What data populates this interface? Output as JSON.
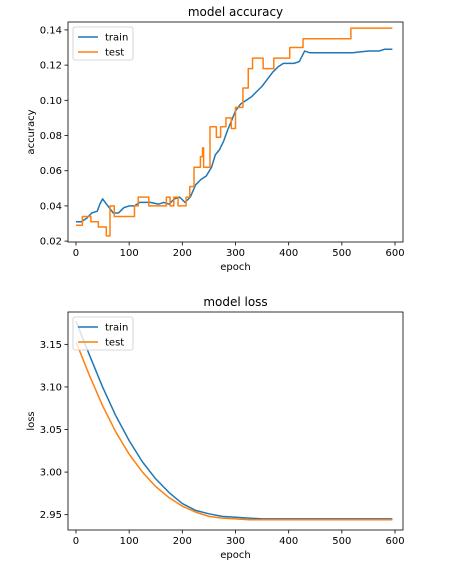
{
  "chart_data": [
    {
      "type": "line",
      "title": "model accuracy",
      "xlabel": "epoch",
      "ylabel": "accuracy",
      "xlim": [
        -15,
        615
      ],
      "ylim": [
        0.0195,
        0.1445
      ],
      "xticks": [
        0,
        100,
        200,
        300,
        400,
        500,
        600
      ],
      "yticks": [
        0.02,
        0.04,
        0.06,
        0.08,
        0.1,
        0.12,
        0.14
      ],
      "ytick_labels": [
        "0.02",
        "0.04",
        "0.06",
        "0.08",
        "0.10",
        "0.12",
        "0.14"
      ],
      "legend": "top-left",
      "series": [
        {
          "name": "train",
          "color": "#1f77b4",
          "points": [
            [
              0,
              0.031
            ],
            [
              10,
              0.031
            ],
            [
              20,
              0.033
            ],
            [
              30,
              0.036
            ],
            [
              40,
              0.037
            ],
            [
              45,
              0.041
            ],
            [
              50,
              0.044
            ],
            [
              55,
              0.042
            ],
            [
              60,
              0.04
            ],
            [
              70,
              0.036
            ],
            [
              80,
              0.036
            ],
            [
              90,
              0.039
            ],
            [
              100,
              0.04
            ],
            [
              110,
              0.04
            ],
            [
              120,
              0.042
            ],
            [
              140,
              0.042
            ],
            [
              155,
              0.041
            ],
            [
              165,
              0.042
            ],
            [
              175,
              0.041
            ],
            [
              185,
              0.044
            ],
            [
              195,
              0.045
            ],
            [
              205,
              0.042
            ],
            [
              215,
              0.045
            ],
            [
              225,
              0.052
            ],
            [
              235,
              0.055
            ],
            [
              245,
              0.057
            ],
            [
              255,
              0.062
            ],
            [
              262,
              0.069
            ],
            [
              270,
              0.072
            ],
            [
              278,
              0.077
            ],
            [
              285,
              0.083
            ],
            [
              292,
              0.088
            ],
            [
              300,
              0.094
            ],
            [
              310,
              0.098
            ],
            [
              320,
              0.1
            ],
            [
              330,
              0.102
            ],
            [
              340,
              0.105
            ],
            [
              350,
              0.108
            ],
            [
              360,
              0.112
            ],
            [
              370,
              0.116
            ],
            [
              380,
              0.119
            ],
            [
              390,
              0.121
            ],
            [
              410,
              0.121
            ],
            [
              420,
              0.122
            ],
            [
              430,
              0.128
            ],
            [
              440,
              0.127
            ],
            [
              460,
              0.127
            ],
            [
              520,
              0.127
            ],
            [
              550,
              0.128
            ],
            [
              570,
              0.128
            ],
            [
              580,
              0.129
            ],
            [
              595,
              0.129
            ]
          ]
        },
        {
          "name": "test",
          "color": "#ff7f0e",
          "step": true,
          "points": [
            [
              0,
              0.029
            ],
            [
              10,
              0.029
            ],
            [
              12,
              0.034
            ],
            [
              25,
              0.034
            ],
            [
              28,
              0.031
            ],
            [
              40,
              0.031
            ],
            [
              42,
              0.028
            ],
            [
              55,
              0.028
            ],
            [
              57,
              0.023
            ],
            [
              62,
              0.023
            ],
            [
              64,
              0.04
            ],
            [
              70,
              0.04
            ],
            [
              72,
              0.034
            ],
            [
              108,
              0.034
            ],
            [
              110,
              0.04
            ],
            [
              115,
              0.04
            ],
            [
              117,
              0.045
            ],
            [
              135,
              0.045
            ],
            [
              137,
              0.04
            ],
            [
              168,
              0.04
            ],
            [
              170,
              0.045
            ],
            [
              175,
              0.045
            ],
            [
              177,
              0.04
            ],
            [
              182,
              0.04
            ],
            [
              184,
              0.045
            ],
            [
              190,
              0.045
            ],
            [
              192,
              0.04
            ],
            [
              205,
              0.04
            ],
            [
              207,
              0.045
            ],
            [
              212,
              0.045
            ],
            [
              214,
              0.051
            ],
            [
              220,
              0.051
            ],
            [
              222,
              0.062
            ],
            [
              232,
              0.062
            ],
            [
              234,
              0.068
            ],
            [
              238,
              0.073
            ],
            [
              240,
              0.062
            ],
            [
              250,
              0.062
            ],
            [
              252,
              0.085
            ],
            [
              262,
              0.085
            ],
            [
              264,
              0.079
            ],
            [
              270,
              0.079
            ],
            [
              272,
              0.085
            ],
            [
              280,
              0.085
            ],
            [
              282,
              0.09
            ],
            [
              290,
              0.09
            ],
            [
              292,
              0.084
            ],
            [
              298,
              0.084
            ],
            [
              300,
              0.096
            ],
            [
              312,
              0.096
            ],
            [
              314,
              0.107
            ],
            [
              322,
              0.107
            ],
            [
              324,
              0.118
            ],
            [
              330,
              0.118
            ],
            [
              332,
              0.124
            ],
            [
              350,
              0.124
            ],
            [
              352,
              0.118
            ],
            [
              370,
              0.118
            ],
            [
              372,
              0.124
            ],
            [
              400,
              0.124
            ],
            [
              402,
              0.13
            ],
            [
              425,
              0.13
            ],
            [
              427,
              0.135
            ],
            [
              515,
              0.135
            ],
            [
              517,
              0.141
            ],
            [
              595,
              0.141
            ]
          ]
        }
      ]
    },
    {
      "type": "line",
      "title": "model loss",
      "xlabel": "epoch",
      "ylabel": "loss",
      "xlim": [
        -15,
        615
      ],
      "ylim": [
        2.932,
        3.188
      ],
      "xticks": [
        0,
        100,
        200,
        300,
        400,
        500,
        600
      ],
      "yticks": [
        2.95,
        3.0,
        3.05,
        3.1,
        3.15
      ],
      "ytick_labels": [
        "2.95",
        "3.00",
        "3.05",
        "3.10",
        "3.15"
      ],
      "legend": "top-left",
      "series": [
        {
          "name": "train",
          "color": "#1f77b4",
          "points": [
            [
              0,
              3.177
            ],
            [
              25,
              3.138
            ],
            [
              50,
              3.1
            ],
            [
              75,
              3.066
            ],
            [
              100,
              3.037
            ],
            [
              125,
              3.012
            ],
            [
              150,
              2.992
            ],
            [
              175,
              2.976
            ],
            [
              200,
              2.963
            ],
            [
              225,
              2.955
            ],
            [
              250,
              2.951
            ],
            [
              275,
              2.948
            ],
            [
              300,
              2.947
            ],
            [
              325,
              2.946
            ],
            [
              350,
              2.945
            ],
            [
              375,
              2.945
            ],
            [
              400,
              2.945
            ],
            [
              450,
              2.945
            ],
            [
              500,
              2.945
            ],
            [
              550,
              2.945
            ],
            [
              595,
              2.945
            ]
          ]
        },
        {
          "name": "test",
          "color": "#ff7f0e",
          "points": [
            [
              0,
              3.153
            ],
            [
              25,
              3.114
            ],
            [
              50,
              3.078
            ],
            [
              75,
              3.047
            ],
            [
              100,
              3.021
            ],
            [
              125,
              3.0
            ],
            [
              150,
              2.983
            ],
            [
              175,
              2.97
            ],
            [
              200,
              2.96
            ],
            [
              225,
              2.953
            ],
            [
              250,
              2.948
            ],
            [
              275,
              2.946
            ],
            [
              300,
              2.945
            ],
            [
              325,
              2.944
            ],
            [
              350,
              2.944
            ],
            [
              375,
              2.944
            ],
            [
              400,
              2.944
            ],
            [
              450,
              2.944
            ],
            [
              500,
              2.944
            ],
            [
              550,
              2.944
            ],
            [
              595,
              2.944
            ]
          ]
        }
      ]
    }
  ]
}
